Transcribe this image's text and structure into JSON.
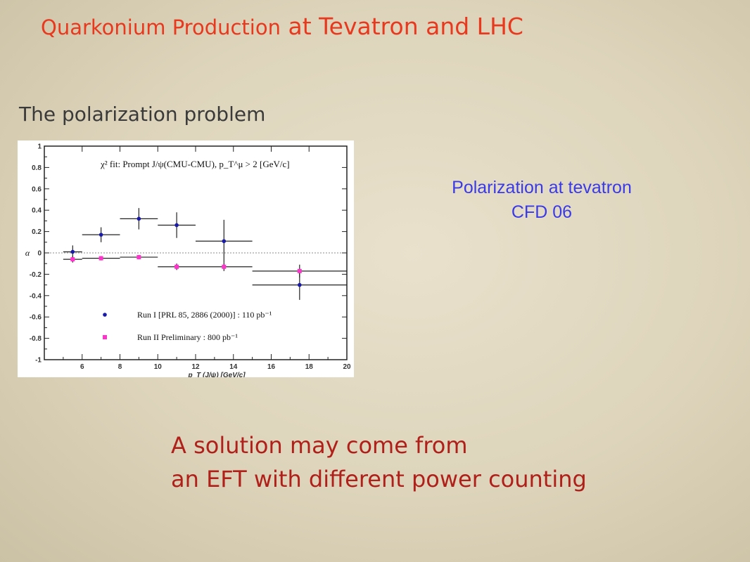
{
  "slide": {
    "title_part1": "Quarkonium Production",
    "title_part2": " at Tevatron and LHC",
    "subtitle": "The polarization problem",
    "caption_line1": "Polarization at tevatron",
    "caption_line2": "CFD 06",
    "conclusion_line1": "A solution may come from",
    "conclusion_line2": "an EFT with different power counting",
    "colors": {
      "title": "#e8391f",
      "caption": "#3a3ae6",
      "conclusion": "#b0201a",
      "run1": "#1a1aa8",
      "run2": "#ff33cc"
    }
  },
  "chart_data": {
    "type": "scatter",
    "title": "χ² fit: Prompt J/ψ(CMU-CMU), p_T^μ > 2 [GeV/c]",
    "xlabel": "p_T (J/ψ) [GeV/c]",
    "ylabel": "α",
    "xlim": [
      4,
      20
    ],
    "ylim": [
      -1,
      1
    ],
    "x_ticks": [
      6,
      8,
      10,
      12,
      14,
      16,
      18,
      20
    ],
    "y_ticks": [
      -1,
      -0.8,
      -0.6,
      -0.4,
      -0.2,
      0,
      0.2,
      0.4,
      0.6,
      0.8,
      1
    ],
    "y_tick_labels": [
      "-1",
      "-0.8",
      "-0.6",
      "-0.4",
      "-0.2",
      "0",
      "0.2",
      "0.4",
      "0.6",
      "0.8",
      "1"
    ],
    "x_tick_labels": [
      "6",
      "8",
      "10",
      "12",
      "14",
      "16",
      "18",
      "20"
    ],
    "zero_line": true,
    "legend_position": "bottom-left",
    "series": [
      {
        "name": "Run I [PRL 85, 2886 (2000)] : 110 pb⁻¹",
        "marker": "circle",
        "points": [
          {
            "x": 5.5,
            "xlo": 5.0,
            "xhi": 6.0,
            "y": 0.01,
            "yerr": 0.06
          },
          {
            "x": 7.0,
            "xlo": 6.0,
            "xhi": 8.0,
            "y": 0.17,
            "yerr": 0.07
          },
          {
            "x": 9.0,
            "xlo": 8.0,
            "xhi": 10.0,
            "y": 0.32,
            "yerr": 0.1
          },
          {
            "x": 11.0,
            "xlo": 10.0,
            "xhi": 12.0,
            "y": 0.26,
            "yerr": 0.12
          },
          {
            "x": 13.5,
            "xlo": 12.0,
            "xhi": 15.0,
            "y": 0.11,
            "yerr": 0.2
          },
          {
            "x": 17.5,
            "xlo": 15.0,
            "xhi": 20.0,
            "y": -0.3,
            "yerr": 0.14
          }
        ]
      },
      {
        "name": "Run II Preliminary : 800 pb⁻¹",
        "marker": "square",
        "points": [
          {
            "x": 5.5,
            "xlo": 5.0,
            "xhi": 6.0,
            "y": -0.06,
            "yerr": 0.03
          },
          {
            "x": 7.0,
            "xlo": 6.0,
            "xhi": 8.0,
            "y": -0.05,
            "yerr": 0.02
          },
          {
            "x": 9.0,
            "xlo": 8.0,
            "xhi": 10.0,
            "y": -0.04,
            "yerr": 0.02
          },
          {
            "x": 11.0,
            "xlo": 10.0,
            "xhi": 12.0,
            "y": -0.13,
            "yerr": 0.03
          },
          {
            "x": 13.5,
            "xlo": 12.0,
            "xhi": 15.0,
            "y": -0.13,
            "yerr": 0.04
          },
          {
            "x": 17.5,
            "xlo": 15.0,
            "xhi": 20.0,
            "y": -0.17,
            "yerr": 0.06
          }
        ]
      }
    ]
  }
}
